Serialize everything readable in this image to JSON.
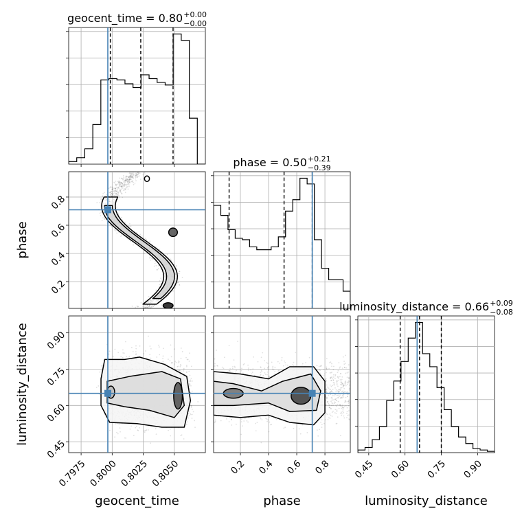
{
  "chart_data": {
    "type": "corner",
    "parameters": [
      "geocent_time",
      "phase",
      "luminosity_distance"
    ],
    "truths": [
      0.79965,
      0.71,
      0.65
    ],
    "ranges": [
      [
        0.7965,
        0.8075
      ],
      [
        0.01,
        0.98
      ],
      [
        0.405,
        0.97
      ]
    ],
    "titles": [
      {
        "name": "geocent_time",
        "median": "0.80",
        "plus": "+0.00",
        "minus": "−0.00"
      },
      {
        "name": "phase",
        "median": "0.50",
        "plus": "+0.21",
        "minus": "−0.39"
      },
      {
        "name": "luminosity_distance",
        "median": "0.66",
        "plus": "+0.09",
        "minus": "−0.08"
      }
    ],
    "ticks": {
      "geocent_time": [
        {
          "v": 0.7975,
          "label": "0.7975"
        },
        {
          "v": 0.8,
          "label": "0.8000"
        },
        {
          "v": 0.8025,
          "label": "0.8025"
        },
        {
          "v": 0.805,
          "label": "0.8050"
        }
      ],
      "phase": [
        {
          "v": 0.2,
          "label": "0.2"
        },
        {
          "v": 0.4,
          "label": "0.4"
        },
        {
          "v": 0.6,
          "label": "0.6"
        },
        {
          "v": 0.8,
          "label": "0.8"
        }
      ],
      "luminosity_distance": [
        {
          "v": 0.45,
          "label": "0.45"
        },
        {
          "v": 0.6,
          "label": "0.60"
        },
        {
          "v": 0.75,
          "label": "0.75"
        },
        {
          "v": 0.9,
          "label": "0.90"
        }
      ]
    },
    "quantiles": [
      [
        0.79985,
        0.8023,
        0.8049
      ],
      [
        0.12,
        0.51,
        0.71
      ],
      [
        0.58,
        0.66,
        0.75
      ]
    ],
    "histograms": [
      {
        "param": "geocent_time",
        "counts": [
          2,
          5,
          12,
          31,
          66,
          67,
          66,
          63,
          60,
          70,
          67,
          64,
          62,
          102,
          97,
          36,
          0
        ]
      },
      {
        "param": "phase",
        "counts": [
          72,
          65,
          55,
          49,
          48,
          43,
          41,
          41,
          43,
          50,
          68,
          76,
          91,
          87,
          48,
          28,
          20,
          20,
          12
        ]
      },
      {
        "param": "luminosity_distance",
        "counts": [
          2,
          4,
          10,
          20,
          40,
          55,
          70,
          88,
          100,
          76,
          66,
          50,
          33,
          20,
          12,
          7,
          3,
          2,
          1
        ]
      }
    ]
  }
}
